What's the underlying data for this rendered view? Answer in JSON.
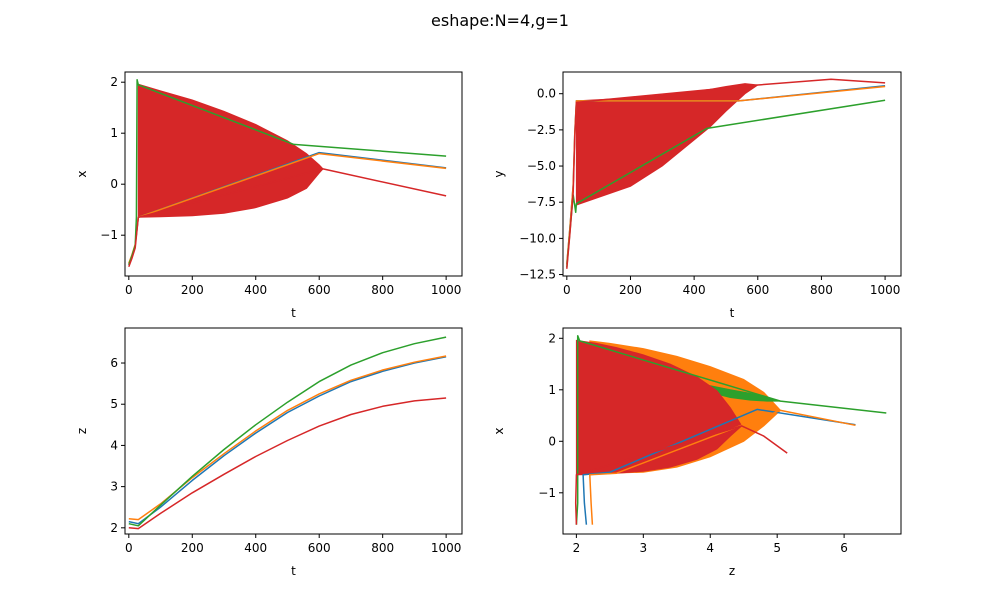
{
  "figure": {
    "title": "eshape:N=4,g=1"
  },
  "chart_data": [
    {
      "type": "line",
      "xlabel": "t",
      "ylabel": "x",
      "xlim": [
        -12,
        1050
      ],
      "ylim": [
        -1.8,
        2.2
      ],
      "xticks": [
        0,
        200,
        400,
        600,
        800,
        1000
      ],
      "yticks": [
        -1,
        0,
        1,
        2
      ],
      "ytick_labels": [
        "−1",
        "0",
        "1",
        "2"
      ],
      "grid": false,
      "series": [
        {
          "color": "#1f77b4",
          "points": [
            [
              0,
              -1.58
            ],
            [
              10,
              -1.4
            ],
            [
              20,
              -1.2
            ],
            [
              30,
              -0.65
            ],
            [
              600,
              0.62
            ],
            [
              1000,
              0.32
            ]
          ]
        },
        {
          "color": "#ff7f0e",
          "points": [
            [
              0,
              -1.55
            ],
            [
              10,
              -1.38
            ],
            [
              20,
              -1.18
            ],
            [
              30,
              -0.65
            ],
            [
              600,
              0.6
            ],
            [
              1000,
              0.31
            ]
          ]
        },
        {
          "color": "#2ca02c",
          "points": [
            [
              0,
              -1.58
            ],
            [
              10,
              -1.4
            ],
            [
              20,
              -1.2
            ],
            [
              24,
              -0.65
            ],
            [
              26,
              2.05
            ],
            [
              30,
              1.95
            ],
            [
              520,
              0.78
            ],
            [
              1000,
              0.55
            ]
          ]
        },
        {
          "color": "#d62728",
          "points": [
            [
              0,
              -1.62
            ],
            [
              10,
              -1.45
            ],
            [
              20,
              -1.25
            ],
            [
              30,
              -0.65
            ],
            [
              612,
              0.3
            ],
            [
              1000,
              -0.23
            ]
          ],
          "band": {
            "x": [
              30,
              100,
              200,
              300,
              400,
              500,
              560,
              600,
              612
            ],
            "upper": [
              1.96,
              1.83,
              1.65,
              1.43,
              1.17,
              0.85,
              0.6,
              0.38,
              0.3
            ],
            "lower": [
              -0.65,
              -0.64,
              -0.62,
              -0.57,
              -0.46,
              -0.27,
              -0.08,
              0.22,
              0.3
            ]
          }
        }
      ]
    },
    {
      "type": "line",
      "xlabel": "t",
      "ylabel": "y",
      "xlim": [
        -12,
        1050
      ],
      "ylim": [
        -12.6,
        1.5
      ],
      "xticks": [
        0,
        200,
        400,
        600,
        800,
        1000
      ],
      "yticks": [
        -12.5,
        -10.0,
        -7.5,
        -5.0,
        -2.5,
        0.0
      ],
      "ytick_labels": [
        "−12.5",
        "−10.0",
        "−7.5",
        "−5.0",
        "−2.5",
        "0.0"
      ],
      "grid": false,
      "series": [
        {
          "color": "#1f77b4",
          "points": [
            [
              0,
              -11.8
            ],
            [
              10,
              -9.2
            ],
            [
              20,
              -6.3
            ],
            [
              25,
              -2.7
            ],
            [
              30,
              -0.5
            ],
            [
              540,
              -0.5
            ],
            [
              1000,
              0.55
            ]
          ]
        },
        {
          "color": "#ff7f0e",
          "points": [
            [
              0,
              -11.8
            ],
            [
              10,
              -9.2
            ],
            [
              20,
              -6.3
            ],
            [
              25,
              -2.7
            ],
            [
              30,
              -0.5
            ],
            [
              540,
              -0.5
            ],
            [
              1000,
              0.5
            ]
          ]
        },
        {
          "color": "#2ca02c",
          "points": [
            [
              0,
              -12
            ],
            [
              10,
              -9.5
            ],
            [
              20,
              -7
            ],
            [
              28,
              -8.2
            ],
            [
              30,
              -7.6
            ],
            [
              440,
              -2.4
            ],
            [
              1000,
              -0.45
            ]
          ]
        },
        {
          "color": "#d62728",
          "points": [
            [
              0,
              -12.1
            ],
            [
              10,
              -9.6
            ],
            [
              20,
              -6.8
            ],
            [
              25,
              -3
            ],
            [
              30,
              -0.6
            ],
            [
              600,
              0.6
            ],
            [
              830,
              1.0
            ],
            [
              1000,
              0.75
            ]
          ],
          "band": {
            "x": [
              30,
              200,
              300,
              400,
              450,
              500,
              560,
              600
            ],
            "upper": [
              -0.5,
              -0.3,
              -0.1,
              0.15,
              0.3,
              0.5,
              0.7,
              0.6
            ],
            "lower": [
              -7.7,
              -6.4,
              -5.0,
              -3.2,
              -2.3,
              -1.2,
              0.0,
              0.6
            ]
          }
        }
      ]
    },
    {
      "type": "line",
      "xlabel": "t",
      "ylabel": "z",
      "xlim": [
        -12,
        1050
      ],
      "ylim": [
        1.85,
        6.85
      ],
      "xticks": [
        0,
        200,
        400,
        600,
        800,
        1000
      ],
      "yticks": [
        2,
        3,
        4,
        5,
        6
      ],
      "ytick_labels": [
        "2",
        "3",
        "4",
        "5",
        "6"
      ],
      "grid": false,
      "series": [
        {
          "color": "#1f77b4",
          "points": [
            [
              0,
              2.15
            ],
            [
              30,
              2.1
            ],
            [
              100,
              2.5
            ],
            [
              200,
              3.15
            ],
            [
              300,
              3.75
            ],
            [
              400,
              4.3
            ],
            [
              500,
              4.8
            ],
            [
              600,
              5.2
            ],
            [
              700,
              5.55
            ],
            [
              800,
              5.8
            ],
            [
              900,
              6.0
            ],
            [
              1000,
              6.15
            ]
          ]
        },
        {
          "color": "#ff7f0e",
          "points": [
            [
              0,
              2.22
            ],
            [
              30,
              2.2
            ],
            [
              100,
              2.58
            ],
            [
              200,
              3.22
            ],
            [
              300,
              3.8
            ],
            [
              400,
              4.35
            ],
            [
              500,
              4.85
            ],
            [
              600,
              5.25
            ],
            [
              700,
              5.58
            ],
            [
              800,
              5.83
            ],
            [
              900,
              6.02
            ],
            [
              1000,
              6.17
            ]
          ]
        },
        {
          "color": "#2ca02c",
          "points": [
            [
              0,
              2.1
            ],
            [
              30,
              2.05
            ],
            [
              100,
              2.55
            ],
            [
              200,
              3.25
            ],
            [
              300,
              3.9
            ],
            [
              400,
              4.5
            ],
            [
              500,
              5.05
            ],
            [
              600,
              5.55
            ],
            [
              700,
              5.95
            ],
            [
              800,
              6.25
            ],
            [
              900,
              6.47
            ],
            [
              1000,
              6.63
            ]
          ]
        },
        {
          "color": "#d62728",
          "points": [
            [
              0,
              2.0
            ],
            [
              30,
              1.98
            ],
            [
              100,
              2.35
            ],
            [
              200,
              2.85
            ],
            [
              300,
              3.3
            ],
            [
              400,
              3.73
            ],
            [
              500,
              4.12
            ],
            [
              600,
              4.47
            ],
            [
              700,
              4.75
            ],
            [
              800,
              4.95
            ],
            [
              900,
              5.08
            ],
            [
              1000,
              5.15
            ]
          ]
        }
      ]
    },
    {
      "type": "line",
      "xlabel": "z",
      "ylabel": "x",
      "xlim": [
        1.8,
        6.85
      ],
      "ylim": [
        -1.8,
        2.2
      ],
      "xticks": [
        2,
        3,
        4,
        5,
        6
      ],
      "yticks": [
        -1,
        0,
        1,
        2
      ],
      "ytick_labels": [
        "−1",
        "0",
        "1",
        "2"
      ],
      "grid": false,
      "series": [
        {
          "color": "#1f77b4",
          "points": [
            [
              2.15,
              -1.62
            ],
            [
              2.12,
              -1.2
            ],
            [
              2.1,
              -0.65
            ],
            [
              2.5,
              -0.6
            ],
            [
              4.7,
              0.62
            ],
            [
              6.17,
              0.32
            ]
          ]
        },
        {
          "color": "#ff7f0e",
          "points": [
            [
              2.24,
              -1.62
            ],
            [
              2.22,
              -1.2
            ],
            [
              2.2,
              -0.65
            ],
            [
              2.6,
              -0.62
            ],
            [
              5.05,
              0.6
            ],
            [
              6.17,
              0.31
            ]
          ],
          "band": {
            "x": [
              2.2,
              2.5,
              3.0,
              3.5,
              4.0,
              4.5,
              4.8,
              5.05
            ],
            "upper": [
              1.95,
              1.9,
              1.8,
              1.65,
              1.45,
              1.2,
              0.95,
              0.6
            ],
            "lower": [
              -0.65,
              -0.62,
              -0.6,
              -0.5,
              -0.3,
              0.0,
              0.3,
              0.6
            ]
          }
        },
        {
          "color": "#2ca02c",
          "points": [
            [
              2.0,
              -1.62
            ],
            [
              2.02,
              -1.2
            ],
            [
              2.02,
              -0.65
            ],
            [
              2.02,
              2.05
            ],
            [
              2.05,
              1.95
            ],
            [
              5.05,
              0.78
            ],
            [
              6.63,
              0.55
            ]
          ],
          "band": {
            "x": [
              3.7,
              4.0,
              4.3,
              4.6,
              4.85,
              5.05
            ],
            "upper": [
              1.12,
              1.08,
              1.0,
              0.93,
              0.85,
              0.78
            ],
            "lower": [
              0.9,
              0.95,
              0.85,
              0.8,
              0.78,
              0.78
            ]
          }
        },
        {
          "color": "#d62728",
          "points": [
            [
              2.0,
              -1.62
            ],
            [
              1.99,
              -1.2
            ],
            [
              2.0,
              -0.65
            ],
            [
              4.47,
              0.3
            ],
            [
              4.8,
              0.1
            ],
            [
              5.15,
              -0.23
            ]
          ],
          "band": {
            "x": [
              2.0,
              2.3,
              2.6,
              3.0,
              3.4,
              3.8,
              4.1,
              4.3,
              4.47
            ],
            "upper": [
              1.96,
              1.9,
              1.82,
              1.68,
              1.5,
              1.25,
              0.98,
              0.65,
              0.3
            ],
            "lower": [
              -0.65,
              -0.64,
              -0.62,
              -0.58,
              -0.5,
              -0.35,
              -0.15,
              0.1,
              0.3
            ]
          }
        }
      ]
    }
  ]
}
